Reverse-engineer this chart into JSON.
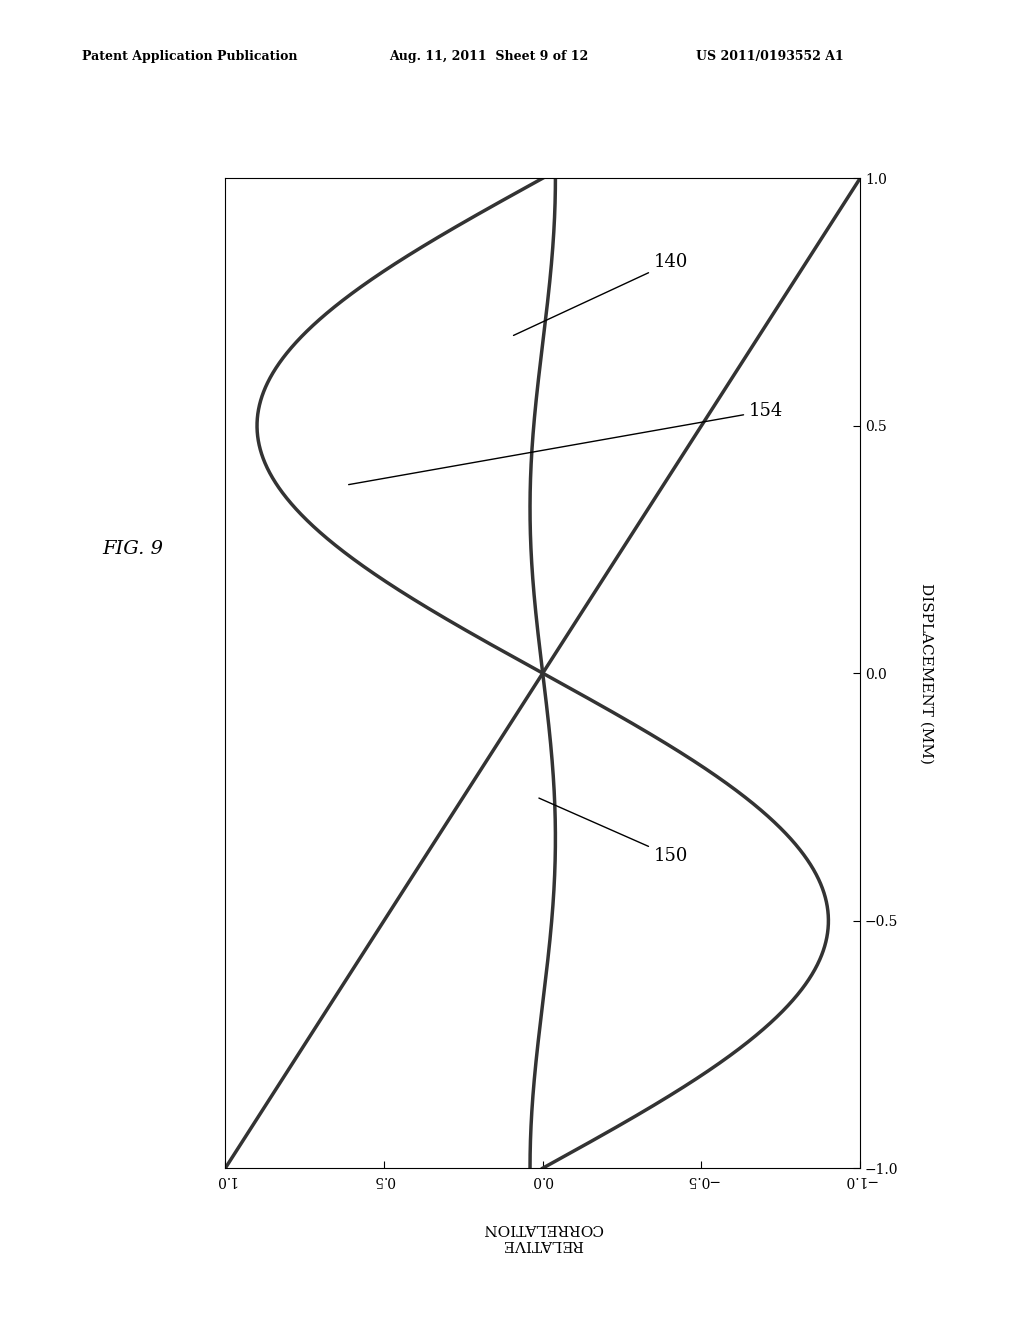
{
  "header_left": "Patent Application Publication",
  "header_mid": "Aug. 11, 2011  Sheet 9 of 12",
  "header_right": "US 2011/0193552 A1",
  "fig_label": "FIG. 9",
  "xlabel": "RELATIVE\nCORRELATION",
  "ylabel": "DISPLACEMENT (MM)",
  "xlim": [
    1.0,
    -1.0
  ],
  "ylim": [
    -1.0,
    1.0
  ],
  "xticks": [
    1.0,
    0.5,
    0.0,
    -0.5,
    -1.0
  ],
  "yticks": [
    -1.0,
    -0.5,
    0.0,
    0.5,
    1.0
  ],
  "curve140_label": "140",
  "curve150_label": "150",
  "curve154_label": "154",
  "line_color": "#333333",
  "line_width": 2.0,
  "background": "#ffffff",
  "annotation_fontsize": 13,
  "axis_fontsize": 11,
  "tick_fontsize": 10
}
